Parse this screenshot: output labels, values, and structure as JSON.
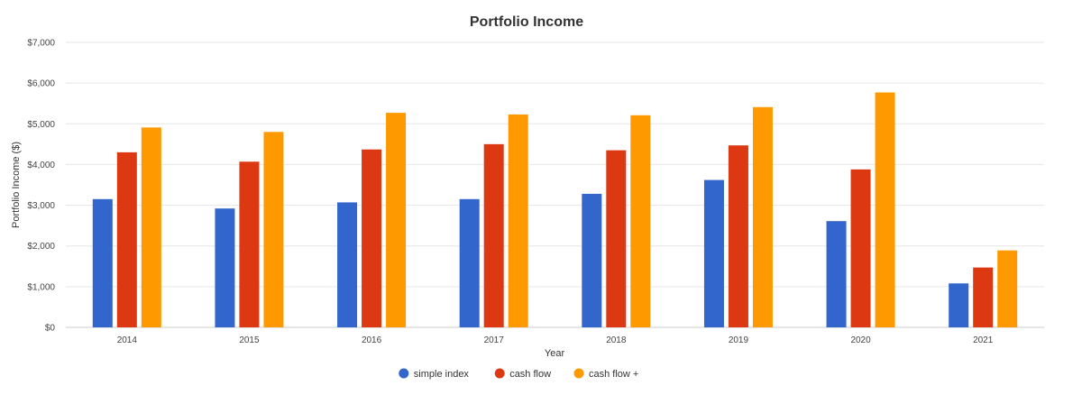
{
  "chart_data": {
    "type": "bar",
    "title": "Portfolio Income",
    "xlabel": "Year",
    "ylabel": "Portfolio Income ($)",
    "ylim": [
      0,
      7000
    ],
    "ytick_values": [
      0,
      1000,
      2000,
      3000,
      4000,
      5000,
      6000,
      7000
    ],
    "ytick_labels": [
      "$0",
      "$1,000",
      "$2,000",
      "$3,000",
      "$4,000",
      "$5,000",
      "$6,000",
      "$7,000"
    ],
    "categories": [
      "2014",
      "2015",
      "2016",
      "2017",
      "2018",
      "2019",
      "2020",
      "2021"
    ],
    "series": [
      {
        "name": "simple index",
        "color": "#3366cc",
        "values": [
          3150,
          2920,
          3070,
          3150,
          3280,
          3620,
          2610,
          1080
        ]
      },
      {
        "name": "cash flow",
        "color": "#dc3912",
        "values": [
          4300,
          4070,
          4370,
          4500,
          4350,
          4470,
          3880,
          1470
        ]
      },
      {
        "name": "cash flow +",
        "color": "#ff9900",
        "values": [
          4910,
          4800,
          5270,
          5230,
          5210,
          5410,
          5770,
          1890
        ]
      }
    ],
    "grid": true,
    "legend_position": "bottom"
  }
}
